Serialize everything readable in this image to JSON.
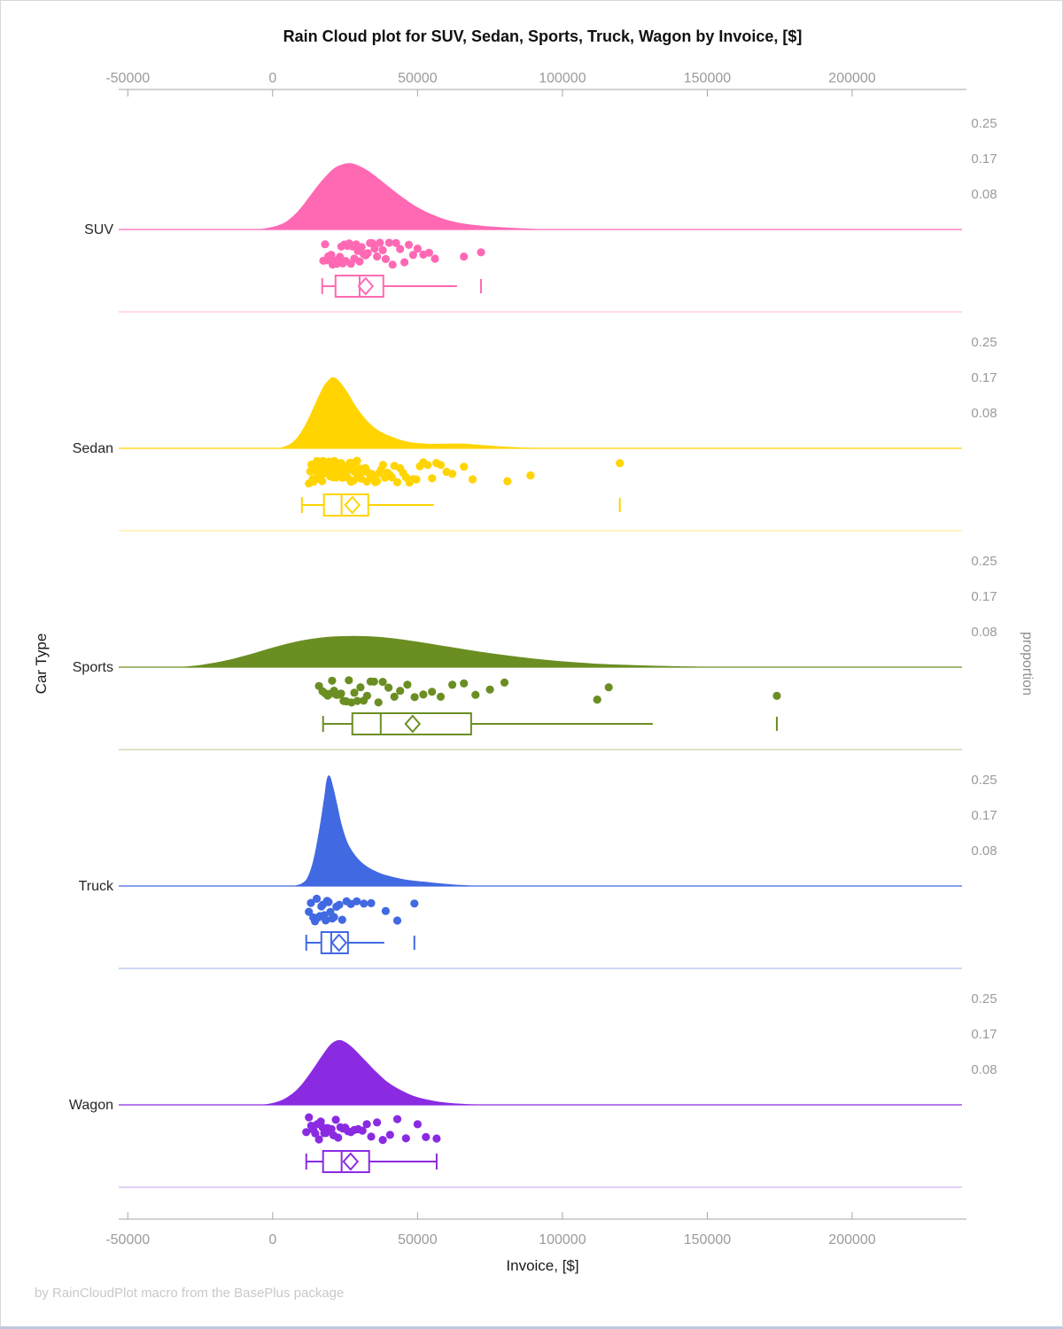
{
  "footer": {
    "credit": "by RainCloudPlot macro from the BasePlus package"
  },
  "chart_data": {
    "type": "raincloud (half-violin density + jittered strip + box plot)",
    "title": "Rain Cloud plot for SUV, Sedan, Sports, Truck, Wagon by Invoice, [$]",
    "xlabel": "Invoice, [$]",
    "ylabel": "Car Type",
    "right_axis_label": "proportion",
    "x_axis": {
      "ticks": [
        -50000,
        0,
        50000,
        100000,
        150000,
        200000
      ],
      "tick_labels": [
        "-50000",
        "0",
        "50000",
        "100000",
        "150000",
        "200000"
      ],
      "range": [
        -53000,
        239000
      ],
      "grid": false
    },
    "proportion_axis": {
      "tick_labels": [
        "0.25",
        "0.17",
        "0.08"
      ],
      "tick_values": [
        0.25,
        0.17,
        0.08
      ]
    },
    "axis_color": "#A6A6A6",
    "tick_label_color": "#9B9B9B",
    "groups": [
      {
        "name": "SUV",
        "color": "#FF69B4",
        "color_light": "#FFD9EC",
        "density": [
          [
            -5,
            0
          ],
          [
            1,
            0.008
          ],
          [
            5,
            0.02
          ],
          [
            9,
            0.045
          ],
          [
            13,
            0.08
          ],
          [
            17,
            0.115
          ],
          [
            21,
            0.143
          ],
          [
            24,
            0.153
          ],
          [
            26.5,
            0.156
          ],
          [
            29,
            0.152
          ],
          [
            33,
            0.138
          ],
          [
            38,
            0.112
          ],
          [
            44,
            0.08
          ],
          [
            50,
            0.052
          ],
          [
            57,
            0.03
          ],
          [
            64,
            0.016
          ],
          [
            72,
            0.009
          ],
          [
            80,
            0.005
          ],
          [
            88,
            0.002
          ],
          [
            96,
            0
          ]
        ],
        "points_k": [
          17.5,
          18.1,
          18.7,
          19.2,
          19.7,
          20.2,
          20.7,
          21.2,
          21.7,
          22.2,
          22.7,
          23.2,
          23.7,
          24.2,
          24.7,
          25.2,
          25.8,
          26.4,
          27,
          27.6,
          28.2,
          28.8,
          29.4,
          30,
          30.7,
          31.4,
          32.1,
          32.8,
          33.6,
          34.4,
          35.2,
          36,
          37,
          38,
          39,
          40.2,
          41.4,
          42.6,
          44,
          45.5,
          47,
          48.5,
          50,
          52,
          54,
          56,
          66,
          71.9
        ],
        "box_k": {
          "whisker_lo": 17.1,
          "q1": 21.7,
          "median": 30.0,
          "mean": 32.1,
          "q3": 38.2,
          "whisker_hi": 63.6,
          "cap_right": false,
          "outliers": [
            71.9
          ]
        }
      },
      {
        "name": "Sedan",
        "color": "#FFD400",
        "color_light": "#FFF4C2",
        "density": [
          [
            2,
            0
          ],
          [
            6,
            0.01
          ],
          [
            9,
            0.03
          ],
          [
            12,
            0.065
          ],
          [
            15,
            0.11
          ],
          [
            17.5,
            0.145
          ],
          [
            19.5,
            0.162
          ],
          [
            21,
            0.167
          ],
          [
            23,
            0.158
          ],
          [
            26,
            0.13
          ],
          [
            29,
            0.096
          ],
          [
            33,
            0.062
          ],
          [
            37,
            0.04
          ],
          [
            42,
            0.025
          ],
          [
            47,
            0.015
          ],
          [
            53,
            0.011
          ],
          [
            60,
            0.011
          ],
          [
            66,
            0.011
          ],
          [
            72,
            0.008
          ],
          [
            80,
            0.004
          ],
          [
            90,
            0.001
          ],
          [
            98,
            0
          ]
        ],
        "points_k": [
          12.5,
          13,
          13.4,
          13.8,
          14.1,
          14.4,
          14.7,
          15,
          15.3,
          15.6,
          15.9,
          16.2,
          16.5,
          16.8,
          17.1,
          17.4,
          17.7,
          18,
          18.3,
          18.6,
          18.9,
          19.2,
          19.5,
          19.8,
          20.1,
          20.4,
          20.7,
          21,
          21.3,
          21.6,
          21.9,
          22.2,
          22.5,
          22.8,
          23.1,
          23.4,
          23.7,
          24,
          24.3,
          24.6,
          24.9,
          25.2,
          25.5,
          25.9,
          26.3,
          26.7,
          27.1,
          27.5,
          27.9,
          28.3,
          28.7,
          29.1,
          29.5,
          30,
          30.5,
          31,
          31.5,
          32,
          32.5,
          33,
          33.6,
          34.2,
          34.8,
          35.4,
          36,
          36.7,
          37.4,
          38.1,
          38.8,
          39.6,
          40.4,
          41.2,
          42,
          43,
          44,
          45,
          46,
          47.2,
          48.4,
          49.6,
          50.8,
          52,
          53.5,
          55,
          56.5,
          58,
          60,
          62,
          66,
          69,
          81,
          89,
          119.8
        ],
        "box_k": {
          "whisker_lo": 10.1,
          "q1": 17.7,
          "median": 23.8,
          "mean": 27.5,
          "q3": 33.0,
          "whisker_hi": 55.6,
          "cap_right": false,
          "outliers": [
            119.8
          ]
        }
      },
      {
        "name": "Sports",
        "color": "#6B8E23",
        "color_light": "#DCE3C4",
        "density": [
          [
            -32,
            0
          ],
          [
            -24,
            0.006
          ],
          [
            -16,
            0.016
          ],
          [
            -8,
            0.03
          ],
          [
            0,
            0.046
          ],
          [
            8,
            0.06
          ],
          [
            16,
            0.069
          ],
          [
            24,
            0.073
          ],
          [
            32,
            0.073
          ],
          [
            40,
            0.069
          ],
          [
            50,
            0.06
          ],
          [
            60,
            0.049
          ],
          [
            72,
            0.036
          ],
          [
            84,
            0.025
          ],
          [
            96,
            0.016
          ],
          [
            110,
            0.009
          ],
          [
            124,
            0.005
          ],
          [
            140,
            0.002
          ],
          [
            158,
            0
          ]
        ],
        "points_k": [
          16,
          17.2,
          18.1,
          19,
          19.8,
          20.5,
          21.2,
          22,
          22.8,
          23.6,
          24.5,
          25.4,
          26.3,
          27.2,
          28.2,
          29.2,
          30.3,
          31.4,
          32.6,
          33.8,
          35,
          36.5,
          38,
          40,
          42,
          44,
          46.5,
          49,
          52,
          55,
          58,
          62,
          66,
          70,
          75,
          80,
          112,
          116,
          174
        ],
        "box_k": {
          "whisker_lo": 17.4,
          "q1": 27.5,
          "median": 37.3,
          "mean": 48.3,
          "q3": 68.5,
          "whisker_hi": 131.2,
          "cap_right": false,
          "outliers": [
            174
          ]
        }
      },
      {
        "name": "Truck",
        "color": "#4169E1",
        "color_light": "#CDD9F5",
        "density": [
          [
            7,
            0
          ],
          [
            10,
            0.006
          ],
          [
            12,
            0.02
          ],
          [
            14,
            0.06
          ],
          [
            16,
            0.13
          ],
          [
            17.7,
            0.205
          ],
          [
            18.7,
            0.252
          ],
          [
            19.8,
            0.258
          ],
          [
            21,
            0.23
          ],
          [
            22.5,
            0.185
          ],
          [
            24,
            0.14
          ],
          [
            26,
            0.1
          ],
          [
            28.5,
            0.072
          ],
          [
            31,
            0.054
          ],
          [
            34,
            0.04
          ],
          [
            38,
            0.028
          ],
          [
            43,
            0.019
          ],
          [
            48,
            0.013
          ],
          [
            54,
            0.009
          ],
          [
            60,
            0.005
          ],
          [
            66,
            0.002
          ],
          [
            72,
            0
          ]
        ],
        "points_k": [
          12.5,
          13.2,
          14,
          14.6,
          15.2,
          15.8,
          16.3,
          16.8,
          17.3,
          17.8,
          18.3,
          18.8,
          19.3,
          19.9,
          20.5,
          21.2,
          22,
          23,
          24,
          25.5,
          27,
          29,
          31.5,
          34,
          39,
          43,
          48.9
        ],
        "box_k": {
          "whisker_lo": 11.6,
          "q1": 16.8,
          "median": 20.2,
          "mean": 22.9,
          "q3": 26.0,
          "whisker_hi": 38.5,
          "cap_right": false,
          "outliers": [
            48.9
          ]
        }
      },
      {
        "name": "Wagon",
        "color": "#8A2BE2",
        "color_light": "#E4D2F6",
        "density": [
          [
            -4,
            0
          ],
          [
            1,
            0.006
          ],
          [
            5,
            0.018
          ],
          [
            9,
            0.04
          ],
          [
            13,
            0.075
          ],
          [
            17,
            0.115
          ],
          [
            20,
            0.142
          ],
          [
            22.6,
            0.152
          ],
          [
            25,
            0.148
          ],
          [
            28,
            0.132
          ],
          [
            32,
            0.104
          ],
          [
            36,
            0.076
          ],
          [
            40,
            0.052
          ],
          [
            45,
            0.032
          ],
          [
            50,
            0.018
          ],
          [
            56,
            0.009
          ],
          [
            62,
            0.004
          ],
          [
            70,
            0.001
          ],
          [
            78,
            0
          ]
        ],
        "points_k": [
          11.6,
          12.5,
          13.3,
          14,
          14.7,
          15.4,
          16,
          16.6,
          17.2,
          17.8,
          18.4,
          19,
          19.6,
          20.3,
          21,
          21.8,
          22.6,
          23.4,
          24.2,
          25,
          26,
          27,
          28.2,
          29.5,
          31,
          32.5,
          34,
          36,
          38,
          40.5,
          43,
          46,
          50,
          52.9,
          56.6
        ],
        "box_k": {
          "whisker_lo": 11.6,
          "q1": 17.4,
          "median": 23.8,
          "mean": 26.9,
          "q3": 33.3,
          "whisker_hi": 56.6,
          "cap_right": true,
          "outliers": []
        }
      }
    ]
  }
}
